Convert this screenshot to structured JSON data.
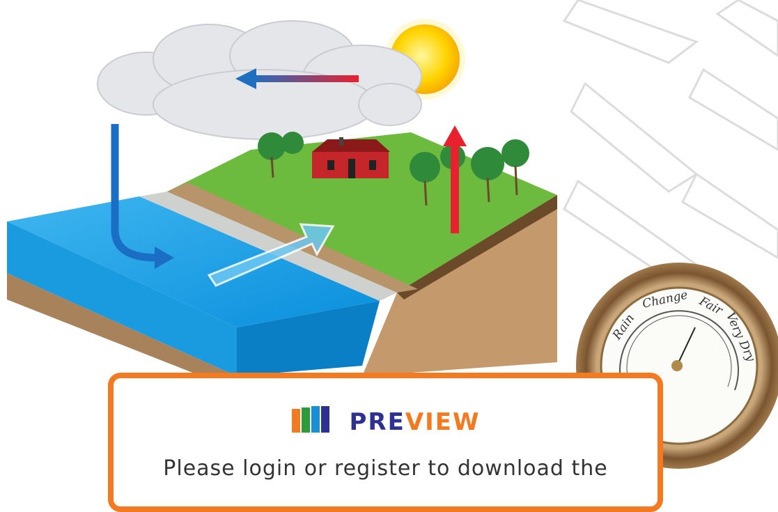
{
  "preview": {
    "title_part1": "PRE",
    "title_part2": "VIEW",
    "message": "Please login or register to download the"
  },
  "barometer": {
    "labels": [
      "Rain",
      "Change",
      "Fair",
      "Very Dry"
    ]
  }
}
